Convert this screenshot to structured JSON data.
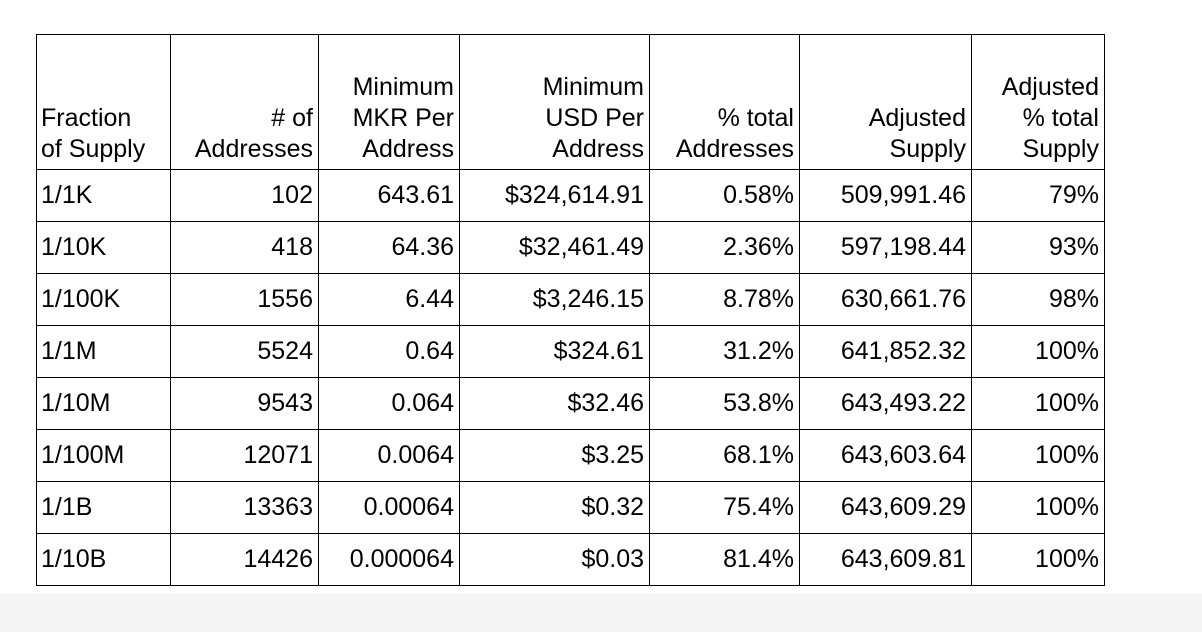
{
  "table": {
    "headers": [
      "Fraction\nof Supply",
      "# of\nAddresses",
      "Minimum\nMKR Per\nAddress",
      "Minimum\nUSD Per\nAddress",
      "% total\nAddresses",
      "Adjusted\nSupply",
      "Adjusted\n% total\nSupply"
    ],
    "rows": [
      [
        "1/1K",
        "102",
        "643.61",
        "$324,614.91",
        "0.58%",
        "509,991.46",
        "79%"
      ],
      [
        "1/10K",
        "418",
        "64.36",
        "$32,461.49",
        "2.36%",
        "597,198.44",
        "93%"
      ],
      [
        "1/100K",
        "1556",
        "6.44",
        "$3,246.15",
        "8.78%",
        "630,661.76",
        "98%"
      ],
      [
        "1/1M",
        "5524",
        "0.64",
        "$324.61",
        "31.2%",
        "641,852.32",
        "100%"
      ],
      [
        "1/10M",
        "9543",
        "0.064",
        "$32.46",
        "53.8%",
        "643,493.22",
        "100%"
      ],
      [
        "1/100M",
        "12071",
        "0.0064",
        "$3.25",
        "68.1%",
        "643,603.64",
        "100%"
      ],
      [
        "1/1B",
        "13363",
        "0.00064",
        "$0.32",
        "75.4%",
        "643,609.29",
        "100%"
      ],
      [
        "1/10B",
        "14426",
        "0.000064",
        "$0.03",
        "81.4%",
        "643,609.81",
        "100%"
      ]
    ]
  }
}
